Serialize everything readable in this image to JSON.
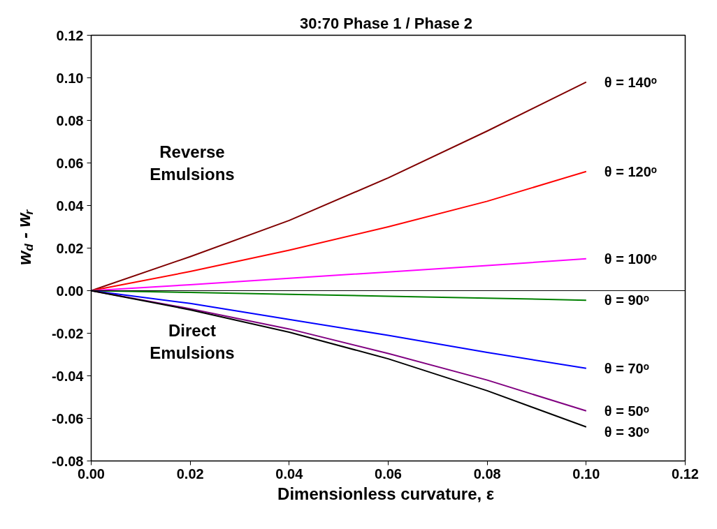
{
  "chart_data": {
    "type": "line",
    "title": "30:70  Phase 1 / Phase 2",
    "xlabel": "Dimensionless curvature,  ε",
    "ylabel": "w$_{d}$ - w$_{r}$",
    "x": [
      0,
      0.02,
      0.04,
      0.06,
      0.08,
      0.1
    ],
    "series": [
      {
        "name": "θ = 140ᵒ",
        "color": "#800000",
        "values": [
          0,
          0.016,
          0.033,
          0.053,
          0.075,
          0.098
        ]
      },
      {
        "name": "θ = 120ᵒ",
        "color": "#ff0000",
        "values": [
          0,
          0.009,
          0.019,
          0.03,
          0.042,
          0.056
        ]
      },
      {
        "name": "θ  = 100ᵒ",
        "color": "#ff00ff",
        "values": [
          0,
          0.0028,
          0.0058,
          0.0088,
          0.0118,
          0.015
        ]
      },
      {
        "name": "θ = 90ᵒ",
        "color": "#008000",
        "values": [
          0,
          -0.0008,
          -0.0017,
          -0.0026,
          -0.0035,
          -0.0045
        ]
      },
      {
        "name": "θ = 70ᵒ",
        "color": "#0000ff",
        "values": [
          0,
          -0.006,
          -0.0135,
          -0.021,
          -0.029,
          -0.0365
        ]
      },
      {
        "name": "θ = 50ᵒ",
        "color": "#800080",
        "values": [
          0,
          -0.0085,
          -0.018,
          -0.0295,
          -0.042,
          -0.0565
        ]
      },
      {
        "name": "θ = 30ᵒ",
        "color": "#000000",
        "values": [
          0,
          -0.009,
          -0.0195,
          -0.032,
          -0.047,
          -0.064
        ]
      }
    ],
    "xlim": [
      0,
      0.12
    ],
    "ylim": [
      -0.08,
      0.12
    ],
    "xticks": [
      {
        "value": 0,
        "label": "0.00"
      },
      0.02,
      0.04,
      0.06,
      0.08,
      {
        "value": 0.1,
        "label": "0.10"
      },
      {
        "value": 0.12,
        "label": "0.12"
      }
    ],
    "yticks": [
      {
        "value": -0.08,
        "label": "-0.08"
      },
      {
        "value": -0.06,
        "label": "-0.06"
      },
      {
        "value": -0.04,
        "label": "-0.04"
      },
      {
        "value": -0.02,
        "label": "-0.02"
      },
      {
        "value": 0,
        "label": "0.00"
      },
      0.02,
      0.04,
      0.06,
      0.08,
      {
        "value": 0.1,
        "label": "0.10"
      },
      0.12
    ],
    "ref_lines": [
      {
        "axis": "y",
        "value": 0,
        "color": "#000000"
      }
    ],
    "annotations": [
      "Reverse\nEmulsions",
      "Direct\nEmulsions"
    ],
    "grid": false,
    "marker": "none",
    "line_style": "solid"
  }
}
